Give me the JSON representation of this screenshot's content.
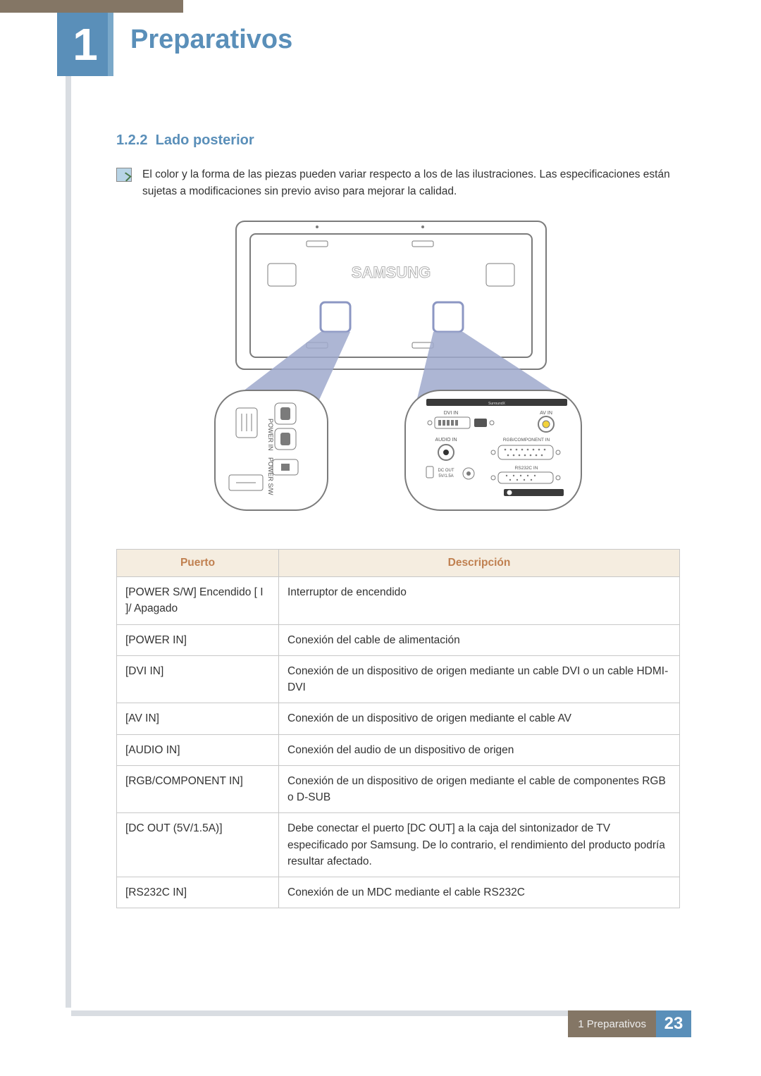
{
  "chapter_number": "1",
  "chapter_title": "Preparativos",
  "section": {
    "number": "1.2.2",
    "title": "Lado posterior"
  },
  "note_text": "El color y la forma de las piezas pueden variar respecto a los de las ilustraciones. Las especificaciones están sujetas a modificaciones sin previo aviso para mejorar la calidad.",
  "diagram": {
    "brand": "SAMSUNG",
    "left_labels": [
      "POWER IN",
      "POWER S/W"
    ],
    "right_ports": [
      "DVI IN",
      "AV IN",
      "AUDIO IN",
      "RGB/COMPONENT IN",
      "RS232C IN",
      "DC OUT",
      "5V/1.5A"
    ],
    "colors": {
      "outline": "#7b7b7b",
      "callout": "#9fa9cc",
      "panel_fill": "#ffffff",
      "jack_yellow": "#f2d23a"
    }
  },
  "table": {
    "headers": [
      "Puerto",
      "Descripción"
    ],
    "rows": [
      [
        "[POWER S/W] Encendido [ I ]/ Apagado",
        "Interruptor de encendido"
      ],
      [
        "[POWER IN]",
        "Conexión del cable de alimentación"
      ],
      [
        "[DVI IN]",
        "Conexión de un dispositivo de origen mediante un cable DVI o un cable HDMI-DVI"
      ],
      [
        "[AV IN]",
        "Conexión de un dispositivo de origen mediante el cable AV"
      ],
      [
        "[AUDIO IN]",
        "Conexión del audio de un dispositivo de origen"
      ],
      [
        "[RGB/COMPONENT IN]",
        "Conexión de un dispositivo de origen mediante el cable de componentes RGB o D-SUB"
      ],
      [
        "[DC OUT (5V/1.5A)]",
        "Debe conectar el puerto [DC OUT] a la caja del sintonizador de TV especificado por Samsung. De lo contrario, el rendimiento del producto podría resultar afectado."
      ],
      [
        "[RS232C IN]",
        "Conexión de un MDC mediante el cable RS232C"
      ]
    ]
  },
  "footer": {
    "label": "1 Preparativos",
    "page": "23"
  }
}
